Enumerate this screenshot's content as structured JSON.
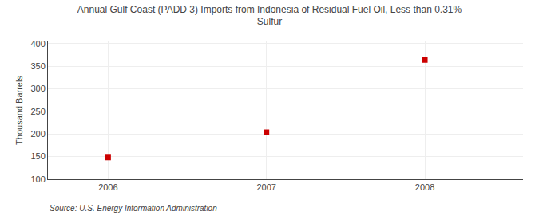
{
  "chart_data": {
    "type": "scatter",
    "title": "Annual Gulf Coast (PADD 3) Imports from Indonesia of Residual Fuel Oil, Less than 0.31%\nSulfur",
    "y_label": "Thousand Barrels",
    "annotations": [
      "Source: U.S. Energy Information Administration"
    ],
    "x": [
      2006,
      2007,
      2008
    ],
    "values": [
      148,
      204,
      364
    ],
    "color": "#cc0000",
    "marker": "square",
    "xlim": [
      2005.62,
      2008.62
    ],
    "xticks": [
      2006,
      2007,
      2008
    ],
    "ylim": [
      100,
      405
    ],
    "yticks": [
      100,
      150,
      200,
      250,
      300,
      350,
      400
    ],
    "grid": true
  }
}
